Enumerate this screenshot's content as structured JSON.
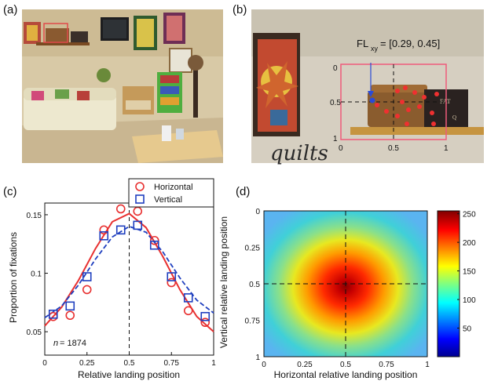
{
  "panels": {
    "a": {
      "label": "(a)"
    },
    "b": {
      "label": "(b)",
      "fl_prefix": "FL",
      "fl_sub": "xy",
      "fl_value": " = [0.29, 0.45]",
      "box_ticks_y": [
        "0",
        "0.5",
        "1"
      ],
      "box_ticks_x": [
        "0",
        "0.5",
        "1"
      ],
      "book_text_1": "FAT",
      "book_text_2": "Q",
      "sign_text": "quilts"
    },
    "c": {
      "label": "(c)",
      "annotation_n": "n",
      "annotation_value": " = 1874",
      "xlabel": "Relative landing position",
      "ylabel": "Proportion of fixations",
      "legend": {
        "horizontal": "Horizontal",
        "vertical": "Vertical"
      }
    },
    "d": {
      "label": "(d)",
      "xlabel": "Horizontal relative landing position",
      "ylabel": "Vertical relative landing position"
    }
  },
  "chart_data": [
    {
      "panel": "c",
      "type": "line",
      "xlabel": "Relative landing position",
      "ylabel": "Proportion of fixations",
      "xlim": [
        0,
        1
      ],
      "ylim": [
        0.03,
        0.16
      ],
      "x_ticks": [
        0,
        0.25,
        0.5,
        0.75,
        1
      ],
      "x_tick_labels": [
        "0",
        "0.25",
        "0.5",
        "0.75",
        "1"
      ],
      "y_ticks": [
        0.05,
        0.1,
        0.15
      ],
      "y_tick_labels": [
        "0.05",
        "0.1",
        "0.15"
      ],
      "x": [
        0.05,
        0.15,
        0.25,
        0.35,
        0.45,
        0.55,
        0.65,
        0.75,
        0.85,
        0.95
      ],
      "series": [
        {
          "name": "Horizontal",
          "marker": "circle",
          "color": "#e83030",
          "values": [
            0.063,
            0.064,
            0.086,
            0.137,
            0.155,
            0.153,
            0.128,
            0.092,
            0.068,
            0.058
          ],
          "fit": [
            0.055,
            0.071,
            0.094,
            0.121,
            0.144,
            0.151,
            0.139,
            0.114,
            0.086,
            0.063,
            0.05
          ]
        },
        {
          "name": "Vertical",
          "marker": "square",
          "color": "#1f3fbf",
          "values": [
            0.065,
            0.072,
            0.097,
            0.132,
            0.137,
            0.141,
            0.124,
            0.097,
            0.079,
            0.063
          ],
          "fit": [
            0.062,
            0.072,
            0.09,
            0.112,
            0.131,
            0.14,
            0.135,
            0.118,
            0.096,
            0.077,
            0.066
          ]
        }
      ],
      "fit_x": [
        0,
        0.1,
        0.2,
        0.3,
        0.4,
        0.5,
        0.6,
        0.7,
        0.8,
        0.9,
        1.0
      ],
      "reference_line_x": 0.5,
      "legend_placement": "top-right (above axes)"
    },
    {
      "panel": "d",
      "type": "heatmap",
      "xlabel": "Horizontal relative landing position",
      "ylabel": "Vertical relative landing position",
      "xlim": [
        0,
        1
      ],
      "ylim": [
        0,
        1
      ],
      "x_ticks": [
        0,
        0.25,
        0.5,
        0.75,
        1
      ],
      "x_tick_labels": [
        "0",
        "0.25",
        "0.5",
        "0.75",
        "1"
      ],
      "y_ticks": [
        0,
        0.25,
        0.5,
        0.75,
        1
      ],
      "y_tick_labels": [
        "0",
        "0.25",
        "0.5",
        "0.75",
        "1"
      ],
      "colorbar_ticks": [
        50,
        100,
        150,
        200,
        250
      ],
      "colorbar_range": [
        0,
        255
      ],
      "peak": {
        "x": 0.5,
        "y": 0.5,
        "value": 255
      },
      "reference_lines": {
        "x": 0.5,
        "y": 0.5
      }
    }
  ]
}
